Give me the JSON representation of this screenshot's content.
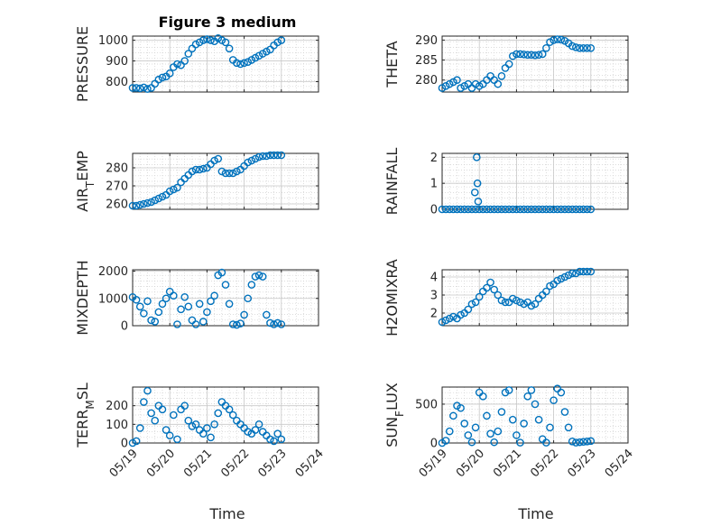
{
  "figure": {
    "title": "Figure 3 medium",
    "xlabel": "Time"
  },
  "style": {
    "marker_color": "#0072BD",
    "axis_color": "#262626",
    "grid_color": "#d0d0d0"
  },
  "chart_data": [
    {
      "type": "scatter",
      "ylabel": "PRESSURE",
      "ylim": [
        750,
        1020
      ],
      "yticks": [
        800,
        900,
        1000
      ],
      "ytick_labels": [
        "800",
        "900",
        "1000"
      ],
      "grid": true,
      "x_ticks": [
        "05/19",
        "05/20",
        "05/21",
        "05/22",
        "05/23",
        "05/24"
      ],
      "show_x_tick_labels": false,
      "xlim": [
        0,
        5
      ],
      "x": [
        0.0,
        0.1,
        0.2,
        0.3,
        0.4,
        0.5,
        0.6,
        0.7,
        0.8,
        0.9,
        1.0,
        1.1,
        1.2,
        1.3,
        1.4,
        1.5,
        1.6,
        1.7,
        1.8,
        1.9,
        2.0,
        2.1,
        2.2,
        2.3,
        2.4,
        2.5,
        2.6,
        2.7,
        2.8,
        2.9,
        3.0,
        3.1,
        3.2,
        3.3,
        3.4,
        3.5,
        3.6,
        3.7,
        3.8,
        3.9,
        4.0
      ],
      "y": [
        770,
        770,
        768,
        772,
        765,
        770,
        790,
        810,
        820,
        825,
        840,
        870,
        885,
        880,
        900,
        935,
        960,
        980,
        990,
        1000,
        1005,
        1000,
        995,
        1010,
        1000,
        990,
        960,
        905,
        890,
        885,
        890,
        895,
        905,
        915,
        925,
        935,
        945,
        955,
        975,
        990,
        1000
      ]
    },
    {
      "type": "scatter",
      "ylabel": "THETA",
      "ylim": [
        277,
        291
      ],
      "yticks": [
        280,
        285,
        290
      ],
      "ytick_labels": [
        "280",
        "285",
        "290"
      ],
      "grid": true,
      "x_ticks": [
        "05/19",
        "05/20",
        "05/21",
        "05/22",
        "05/23",
        "05/24"
      ],
      "show_x_tick_labels": false,
      "xlim": [
        0,
        5
      ],
      "x": [
        0.0,
        0.1,
        0.2,
        0.3,
        0.4,
        0.5,
        0.6,
        0.7,
        0.8,
        0.9,
        1.0,
        1.1,
        1.2,
        1.3,
        1.4,
        1.5,
        1.6,
        1.7,
        1.8,
        1.9,
        2.0,
        2.1,
        2.2,
        2.3,
        2.4,
        2.5,
        2.6,
        2.7,
        2.8,
        2.9,
        3.0,
        3.1,
        3.2,
        3.3,
        3.4,
        3.5,
        3.6,
        3.7,
        3.8,
        3.9,
        4.0
      ],
      "y": [
        278,
        278.5,
        279,
        279.5,
        280,
        278,
        278.5,
        279,
        278,
        279,
        278.5,
        279,
        280,
        281,
        280,
        279,
        281,
        283,
        284,
        286,
        286.5,
        286.5,
        286.4,
        286.3,
        286.3,
        286.2,
        286.3,
        286.5,
        288,
        289.5,
        290,
        290.2,
        290.1,
        289.8,
        289.2,
        288.5,
        288.2,
        288,
        288,
        288,
        288
      ]
    },
    {
      "type": "scatter",
      "ylabel_parts": [
        "AIR",
        "T",
        "EMP"
      ],
      "ylim": [
        257,
        288
      ],
      "yticks": [
        260,
        270,
        280
      ],
      "ytick_labels": [
        "260",
        "270",
        "280"
      ],
      "grid": true,
      "x_ticks": [
        "05/19",
        "05/20",
        "05/21",
        "05/22",
        "05/23",
        "05/24"
      ],
      "show_x_tick_labels": false,
      "xlim": [
        0,
        5
      ],
      "x": [
        0.0,
        0.1,
        0.2,
        0.3,
        0.4,
        0.5,
        0.6,
        0.7,
        0.8,
        0.9,
        1.0,
        1.1,
        1.2,
        1.3,
        1.4,
        1.5,
        1.6,
        1.7,
        1.8,
        1.9,
        2.0,
        2.1,
        2.2,
        2.3,
        2.4,
        2.5,
        2.6,
        2.7,
        2.8,
        2.9,
        3.0,
        3.1,
        3.2,
        3.3,
        3.4,
        3.5,
        3.6,
        3.7,
        3.8,
        3.9,
        4.0
      ],
      "y": [
        259,
        259,
        259.5,
        260,
        260.5,
        261,
        262,
        263,
        264,
        265,
        267,
        268,
        269,
        272,
        274,
        276,
        278,
        279,
        279,
        279.5,
        280,
        282,
        284,
        285,
        278,
        277,
        277,
        277,
        278,
        279,
        281,
        283,
        284,
        285,
        286,
        286.5,
        286.5,
        287,
        287,
        287,
        287
      ]
    },
    {
      "type": "scatter",
      "ylabel": "RAINFALL",
      "ylim": [
        0,
        2.15
      ],
      "yticks": [
        0,
        1,
        2
      ],
      "ytick_labels": [
        "0",
        "1",
        "2"
      ],
      "grid": true,
      "x_ticks": [
        "05/19",
        "05/20",
        "05/21",
        "05/22",
        "05/23",
        "05/24"
      ],
      "show_x_tick_labels": false,
      "xlim": [
        0,
        5
      ],
      "x": [
        0.0,
        0.1,
        0.2,
        0.3,
        0.4,
        0.5,
        0.6,
        0.7,
        0.8,
        0.9,
        1.0,
        1.1,
        1.2,
        1.3,
        1.4,
        1.5,
        1.6,
        1.7,
        1.8,
        1.9,
        2.0,
        2.1,
        2.2,
        2.3,
        2.4,
        2.5,
        2.6,
        2.7,
        2.8,
        2.9,
        3.0,
        3.1,
        3.2,
        3.3,
        3.4,
        3.5,
        3.6,
        3.7,
        3.8,
        3.9,
        4.0,
        0.88,
        0.93,
        0.95,
        0.97
      ],
      "y": [
        0,
        0,
        0,
        0,
        0,
        0,
        0,
        0,
        0,
        0,
        0,
        0,
        0,
        0,
        0,
        0,
        0,
        0,
        0,
        0,
        0,
        0,
        0,
        0,
        0,
        0,
        0,
        0,
        0,
        0,
        0,
        0,
        0,
        0,
        0,
        0,
        0,
        0,
        0,
        0,
        0,
        0.65,
        2.0,
        1.0,
        0.3
      ]
    },
    {
      "type": "scatter",
      "ylabel": "MIXDEPTH",
      "ylim": [
        0,
        2050
      ],
      "yticks": [
        0,
        1000,
        2000
      ],
      "ytick_labels": [
        "0",
        "1000",
        "2000"
      ],
      "grid": true,
      "x_ticks": [
        "05/19",
        "05/20",
        "05/21",
        "05/22",
        "05/23",
        "05/24"
      ],
      "show_x_tick_labels": false,
      "xlim": [
        0,
        5
      ],
      "x": [
        0.0,
        0.1,
        0.2,
        0.3,
        0.4,
        0.5,
        0.6,
        0.7,
        0.8,
        0.9,
        1.0,
        1.1,
        1.2,
        1.3,
        1.4,
        1.5,
        1.6,
        1.7,
        1.8,
        1.9,
        2.0,
        2.1,
        2.2,
        2.3,
        2.4,
        2.5,
        2.6,
        2.7,
        2.8,
        2.9,
        3.0,
        3.1,
        3.2,
        3.3,
        3.4,
        3.5,
        3.6,
        3.7,
        3.8,
        3.9,
        4.0
      ],
      "y": [
        1050,
        950,
        700,
        450,
        900,
        200,
        150,
        500,
        800,
        1000,
        1250,
        1100,
        50,
        600,
        1050,
        700,
        200,
        50,
        800,
        150,
        500,
        900,
        1100,
        1850,
        1950,
        1500,
        800,
        50,
        30,
        80,
        400,
        1000,
        1500,
        1800,
        1850,
        1800,
        400,
        100,
        50,
        100,
        50
      ]
    },
    {
      "type": "scatter",
      "ylabel": "H2OMIXRA",
      "ylim": [
        1.3,
        4.4
      ],
      "yticks": [
        2,
        3,
        4
      ],
      "ytick_labels": [
        "2",
        "3",
        "4"
      ],
      "grid": true,
      "x_ticks": [
        "05/19",
        "05/20",
        "05/21",
        "05/22",
        "05/23",
        "05/24"
      ],
      "show_x_tick_labels": false,
      "xlim": [
        0,
        5
      ],
      "x": [
        0.0,
        0.1,
        0.2,
        0.3,
        0.4,
        0.5,
        0.6,
        0.7,
        0.8,
        0.9,
        1.0,
        1.1,
        1.2,
        1.3,
        1.4,
        1.5,
        1.6,
        1.7,
        1.8,
        1.9,
        2.0,
        2.1,
        2.2,
        2.3,
        2.4,
        2.5,
        2.6,
        2.7,
        2.8,
        2.9,
        3.0,
        3.1,
        3.2,
        3.3,
        3.4,
        3.5,
        3.6,
        3.7,
        3.8,
        3.9,
        4.0
      ],
      "y": [
        1.5,
        1.6,
        1.7,
        1.8,
        1.7,
        1.9,
        2.0,
        2.2,
        2.5,
        2.6,
        2.9,
        3.2,
        3.4,
        3.7,
        3.3,
        3.0,
        2.7,
        2.6,
        2.6,
        2.8,
        2.7,
        2.6,
        2.5,
        2.6,
        2.4,
        2.5,
        2.8,
        3.0,
        3.2,
        3.5,
        3.6,
        3.8,
        3.9,
        4.0,
        4.1,
        4.2,
        4.2,
        4.3,
        4.3,
        4.3,
        4.3
      ]
    },
    {
      "type": "scatter",
      "ylabel_parts": [
        "TERR",
        "M",
        "SL"
      ],
      "ylim": [
        0,
        300
      ],
      "yticks": [
        0,
        100,
        200
      ],
      "ytick_labels": [
        "0",
        "100",
        "200"
      ],
      "grid": true,
      "x_ticks": [
        "05/19",
        "05/20",
        "05/21",
        "05/22",
        "05/23",
        "05/24"
      ],
      "show_x_tick_labels": true,
      "xlim": [
        0,
        5
      ],
      "x": [
        0.0,
        0.1,
        0.2,
        0.3,
        0.4,
        0.5,
        0.6,
        0.7,
        0.8,
        0.9,
        1.0,
        1.1,
        1.2,
        1.3,
        1.4,
        1.5,
        1.6,
        1.7,
        1.8,
        1.9,
        2.0,
        2.1,
        2.2,
        2.3,
        2.4,
        2.5,
        2.6,
        2.7,
        2.8,
        2.9,
        3.0,
        3.1,
        3.2,
        3.3,
        3.4,
        3.5,
        3.6,
        3.7,
        3.8,
        3.9,
        4.0
      ],
      "y": [
        0,
        10,
        80,
        220,
        280,
        160,
        120,
        200,
        180,
        70,
        40,
        150,
        20,
        180,
        200,
        120,
        90,
        100,
        70,
        50,
        80,
        30,
        100,
        160,
        220,
        200,
        180,
        150,
        120,
        100,
        80,
        60,
        50,
        70,
        100,
        60,
        40,
        20,
        10,
        50,
        20
      ]
    },
    {
      "type": "scatter",
      "ylabel_parts": [
        "SUN",
        "F",
        "LUX"
      ],
      "ylim": [
        0,
        720
      ],
      "yticks": [
        0,
        500
      ],
      "ytick_labels": [
        "0",
        "500"
      ],
      "grid": true,
      "x_ticks": [
        "05/19",
        "05/20",
        "05/21",
        "05/22",
        "05/23",
        "05/24"
      ],
      "show_x_tick_labels": true,
      "xlim": [
        0,
        5
      ],
      "x": [
        0.0,
        0.1,
        0.2,
        0.3,
        0.4,
        0.5,
        0.6,
        0.7,
        0.8,
        0.9,
        1.0,
        1.1,
        1.2,
        1.3,
        1.4,
        1.5,
        1.6,
        1.7,
        1.8,
        1.9,
        2.0,
        2.1,
        2.2,
        2.3,
        2.4,
        2.5,
        2.6,
        2.7,
        2.8,
        2.9,
        3.0,
        3.1,
        3.2,
        3.3,
        3.4,
        3.5,
        3.6,
        3.7,
        3.8,
        3.9,
        4.0
      ],
      "y": [
        0,
        30,
        150,
        350,
        480,
        450,
        250,
        100,
        10,
        200,
        650,
        600,
        350,
        120,
        10,
        150,
        400,
        650,
        680,
        300,
        100,
        5,
        250,
        600,
        680,
        500,
        300,
        50,
        5,
        200,
        550,
        700,
        650,
        400,
        200,
        20,
        5,
        10,
        15,
        20,
        25
      ]
    }
  ]
}
